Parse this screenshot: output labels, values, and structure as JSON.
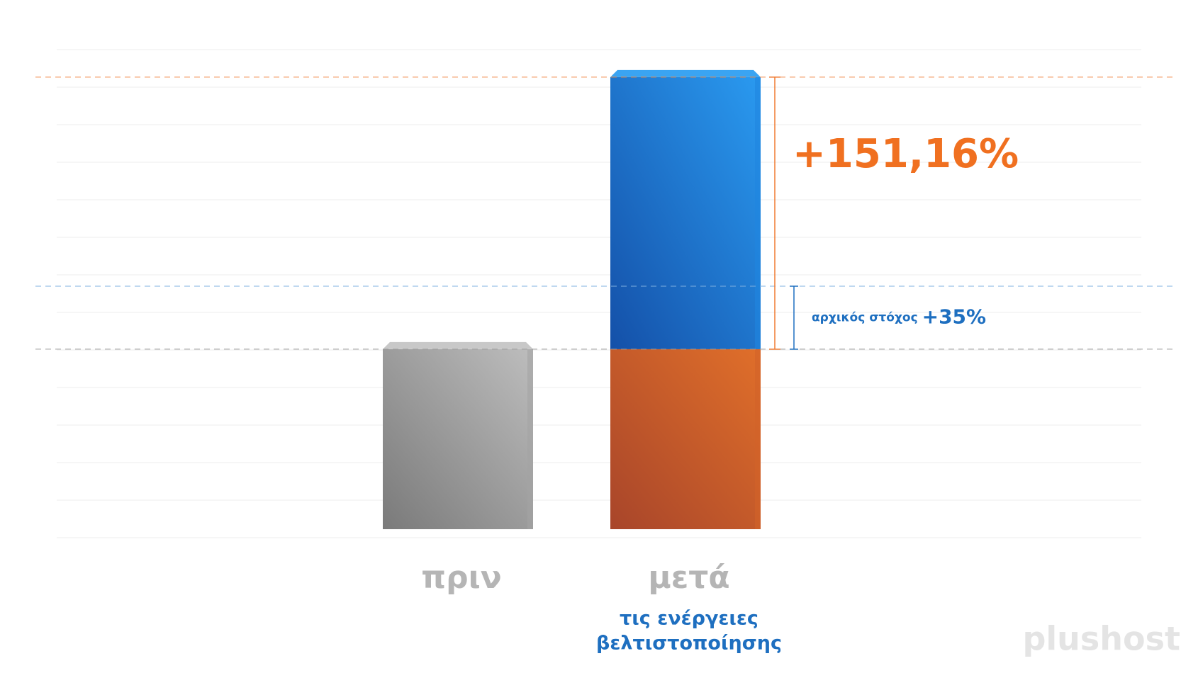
{
  "chart_data": {
    "type": "bar",
    "categories": [
      "πριν",
      "μετά"
    ],
    "category_note": [
      "τις ενέργειες",
      "βελτιστοποίησης"
    ],
    "series": [
      {
        "colors": [
          "#a3a3a3",
          "#d2622a"
        ],
        "values": [
          100,
          100
        ]
      },
      {
        "color": "#1f86e0",
        "values": [
          null,
          151.16
        ],
        "value_labels": [
          null,
          "+151,16%"
        ]
      }
    ],
    "target": {
      "text": "αρχικός στόχος",
      "value": 35,
      "label": "+35%"
    },
    "ylim": [
      0,
      270
    ],
    "logo": "plushost"
  }
}
